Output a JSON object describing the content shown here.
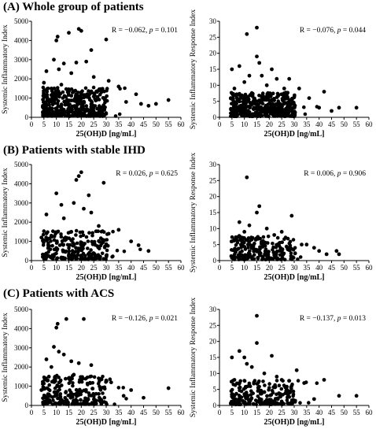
{
  "sections": [
    {
      "title": "(A) Whole group of patients"
    },
    {
      "title": "(B) Patients with stable IHD"
    },
    {
      "title": "(C) Patients with ACS"
    }
  ],
  "chart_data": [
    {
      "type": "scatter",
      "name": "A-SII",
      "xlabel": "25(OH)D [ng/mL]",
      "ylabel": "Systemic Inflammatory Index",
      "xlim": [
        0,
        60
      ],
      "ylim": [
        0,
        5000
      ],
      "xticks": [
        "0",
        "5",
        "10",
        "15",
        "20",
        "25",
        "30",
        "35",
        "40",
        "45",
        "50",
        "55",
        "60"
      ],
      "yticks": [
        "0",
        "1000",
        "2000",
        "3000",
        "4000",
        "5000"
      ],
      "annotation": {
        "prefix": "R = −0.062, ",
        "p_label": "p",
        "suffix": " = 0.101"
      },
      "color": "#000000",
      "points": [
        [
          10,
          4000
        ],
        [
          10.5,
          4200
        ],
        [
          15,
          4400
        ],
        [
          19,
          4600
        ],
        [
          20,
          4500
        ],
        [
          30,
          4050
        ],
        [
          24,
          3500
        ],
        [
          9,
          3000
        ],
        [
          13,
          2800
        ],
        [
          18,
          2850
        ],
        [
          22,
          2900
        ],
        [
          6,
          2400
        ],
        [
          11,
          2500
        ],
        [
          16,
          2300
        ],
        [
          25,
          2100
        ],
        [
          31,
          1900
        ],
        [
          35,
          1600
        ],
        [
          42,
          1200
        ],
        [
          55,
          900
        ],
        [
          5,
          1800
        ],
        [
          8,
          1500
        ],
        [
          12,
          1700
        ],
        [
          27,
          1400
        ],
        [
          38,
          800
        ],
        [
          44,
          700
        ],
        [
          47,
          600
        ],
        [
          50,
          700
        ]
      ]
    },
    {
      "type": "scatter",
      "name": "A-SIRI",
      "xlabel": "25(OH)D [ng/mL]",
      "ylabel": "Systemic Inflammatory Response Index",
      "xlim": [
        0,
        60
      ],
      "ylim": [
        0,
        30
      ],
      "xticks": [
        "0",
        "5",
        "10",
        "15",
        "20",
        "25",
        "30",
        "35",
        "40",
        "45",
        "50",
        "55",
        "60"
      ],
      "yticks": [
        "0",
        "5",
        "10",
        "15",
        "20",
        "25",
        "30"
      ],
      "annotation": {
        "prefix": "R = −0.076, ",
        "p_label": "p",
        "suffix": " = 0.044"
      },
      "color": "#000000",
      "points": [
        [
          15,
          28
        ],
        [
          11,
          26
        ],
        [
          15,
          19
        ],
        [
          16,
          17
        ],
        [
          8,
          16
        ],
        [
          5,
          15
        ],
        [
          21,
          15
        ],
        [
          12,
          13
        ],
        [
          17,
          13
        ],
        [
          23,
          12
        ],
        [
          10,
          11
        ],
        [
          28,
          12
        ],
        [
          32,
          9
        ],
        [
          42,
          8
        ],
        [
          6,
          9
        ],
        [
          19,
          10
        ],
        [
          26,
          9
        ],
        [
          36,
          6
        ],
        [
          48,
          3
        ],
        [
          55,
          3
        ],
        [
          40,
          3
        ],
        [
          45,
          2
        ]
      ]
    },
    {
      "type": "scatter",
      "name": "B-SII",
      "xlabel": "25(OH)D [ng/mL]",
      "ylabel": "Systemic Inflammatory Index",
      "xlim": [
        0,
        60
      ],
      "ylim": [
        0,
        5000
      ],
      "xticks": [
        "0",
        "5",
        "10",
        "15",
        "20",
        "25",
        "30",
        "35",
        "40",
        "45",
        "50",
        "55",
        "60"
      ],
      "yticks": [
        "0",
        "1000",
        "2000",
        "3000",
        "4000",
        "5000"
      ],
      "annotation": {
        "prefix": "R = 0.026, ",
        "p_label": "p",
        "suffix": " = 0.625"
      },
      "color": "#000000",
      "points": [
        [
          20,
          4600
        ],
        [
          19,
          4400
        ],
        [
          18,
          4200
        ],
        [
          29,
          4050
        ],
        [
          10,
          3500
        ],
        [
          23,
          3400
        ],
        [
          17,
          3000
        ],
        [
          12,
          2900
        ],
        [
          21,
          2700
        ],
        [
          6,
          2400
        ],
        [
          24,
          2500
        ],
        [
          13,
          2200
        ],
        [
          27,
          1800
        ],
        [
          35,
          1600
        ],
        [
          31,
          1400
        ],
        [
          40,
          1000
        ],
        [
          43,
          800
        ],
        [
          47,
          500
        ],
        [
          4,
          1200
        ],
        [
          8,
          1300
        ],
        [
          16,
          1500
        ]
      ]
    },
    {
      "type": "scatter",
      "name": "B-SIRI",
      "xlabel": "25(OH)D [ng/mL]",
      "ylabel": "Systemic Inflammatory Response Index",
      "xlim": [
        0,
        60
      ],
      "ylim": [
        0,
        30
      ],
      "xticks": [
        "0",
        "5",
        "10",
        "15",
        "20",
        "25",
        "30",
        "35",
        "40",
        "45",
        "50",
        "55",
        "60"
      ],
      "yticks": [
        "0",
        "5",
        "10",
        "15",
        "20",
        "25",
        "30"
      ],
      "annotation": {
        "prefix": "R = 0.006, ",
        "p_label": "p",
        "suffix": " = 0.906"
      },
      "color": "#000000",
      "points": [
        [
          11,
          26
        ],
        [
          16,
          17
        ],
        [
          15,
          15
        ],
        [
          29,
          14
        ],
        [
          8,
          12
        ],
        [
          12,
          11
        ],
        [
          19,
          10
        ],
        [
          25,
          9
        ],
        [
          10,
          9
        ],
        [
          22,
          8
        ],
        [
          5,
          6
        ],
        [
          33,
          5
        ],
        [
          35,
          5
        ],
        [
          38,
          4
        ],
        [
          40,
          3
        ],
        [
          43,
          2
        ],
        [
          47,
          3
        ],
        [
          48,
          2
        ]
      ]
    },
    {
      "type": "scatter",
      "name": "C-SII",
      "xlabel": "25(OH)D [ng/mL]",
      "ylabel": "Systemic Inflammatory Index",
      "xlim": [
        0,
        60
      ],
      "ylim": [
        0,
        5000
      ],
      "xticks": [
        "0",
        "5",
        "10",
        "15",
        "20",
        "25",
        "30",
        "35",
        "40",
        "45",
        "50",
        "55",
        "60"
      ],
      "yticks": [
        "0",
        "1000",
        "2000",
        "3000",
        "4000",
        "5000"
      ],
      "annotation": {
        "prefix": "R = −0.126, ",
        "p_label": "p",
        "suffix": " = 0.021"
      },
      "color": "#000000",
      "points": [
        [
          14,
          4500
        ],
        [
          21,
          4500
        ],
        [
          10.5,
          4250
        ],
        [
          10,
          4050
        ],
        [
          9,
          3050
        ],
        [
          6,
          2400
        ],
        [
          11,
          2800
        ],
        [
          13,
          2650
        ],
        [
          16,
          2300
        ],
        [
          19,
          2200
        ],
        [
          24,
          2100
        ],
        [
          8,
          2000
        ],
        [
          30,
          1300
        ],
        [
          32,
          1200
        ],
        [
          40,
          800
        ],
        [
          55,
          900
        ],
        [
          45,
          400
        ],
        [
          37,
          500
        ],
        [
          27,
          600
        ],
        [
          4,
          800
        ],
        [
          7,
          1500
        ],
        [
          17,
          1600
        ]
      ]
    },
    {
      "type": "scatter",
      "name": "C-SIRI",
      "xlabel": "25(OH)D [ng/mL]",
      "ylabel": "Systemic Inflammatory Response Index",
      "xlim": [
        0,
        60
      ],
      "ylim": [
        0,
        30
      ],
      "xticks": [
        "0",
        "5",
        "10",
        "15",
        "20",
        "25",
        "30",
        "35",
        "40",
        "45",
        "50",
        "55",
        "60"
      ],
      "yticks": [
        "0",
        "5",
        "10",
        "15",
        "20",
        "25",
        "30"
      ],
      "annotation": {
        "prefix": "R = −0.137, ",
        "p_label": "p",
        "suffix": " = 0.013"
      },
      "color": "#000000",
      "points": [
        [
          15,
          28
        ],
        [
          15,
          19.5
        ],
        [
          8,
          17
        ],
        [
          5,
          15
        ],
        [
          10,
          15
        ],
        [
          21,
          15.5
        ],
        [
          11,
          13
        ],
        [
          13,
          12
        ],
        [
          18,
          10
        ],
        [
          31,
          11
        ],
        [
          23,
          9
        ],
        [
          42,
          8
        ],
        [
          34,
          7
        ],
        [
          48,
          3
        ],
        [
          55,
          3
        ],
        [
          38,
          2
        ],
        [
          27,
          5
        ],
        [
          6,
          8
        ],
        [
          25,
          8
        ]
      ]
    }
  ]
}
